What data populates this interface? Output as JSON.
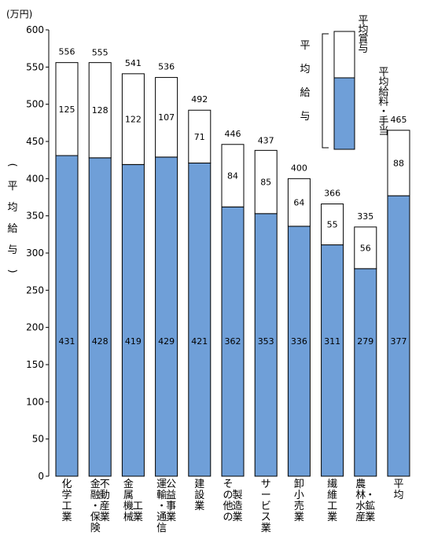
{
  "chart_data": {
    "type": "bar",
    "stacked": true,
    "unit_label": "(万円)",
    "ylabel": "(平均給与)",
    "ylim": [
      0,
      600
    ],
    "yticks": [
      0,
      50,
      100,
      150,
      200,
      250,
      300,
      350,
      400,
      450,
      500,
      550,
      600
    ],
    "grid": false,
    "legend_position": "top-right",
    "categories": [
      [
        "化学工業"
      ],
      [
        "金融・保険",
        "不動産業"
      ],
      [
        "金属機械",
        "工業"
      ],
      [
        "運輸・通信",
        "公益事業"
      ],
      [
        "建設業"
      ],
      [
        "その他の",
        "製造業"
      ],
      [
        "サービス業"
      ],
      [
        "卸小売業"
      ],
      [
        "繊維工業"
      ],
      [
        "農林水産",
        "・鉱業"
      ],
      [
        "平均"
      ]
    ],
    "totals": [
      556,
      555,
      541,
      536,
      492,
      446,
      437,
      400,
      366,
      335,
      465
    ],
    "series": [
      {
        "name": "平均給料・手当",
        "color": "#6f9fd8",
        "values": [
          431,
          428,
          419,
          429,
          421,
          362,
          353,
          336,
          311,
          279,
          377
        ]
      },
      {
        "name": "平均賞与",
        "color": "#ffffff",
        "values": [
          125,
          128,
          122,
          107,
          71,
          84,
          85,
          64,
          55,
          56,
          88
        ]
      }
    ],
    "legend": {
      "group_label": "平均給与"
    }
  }
}
